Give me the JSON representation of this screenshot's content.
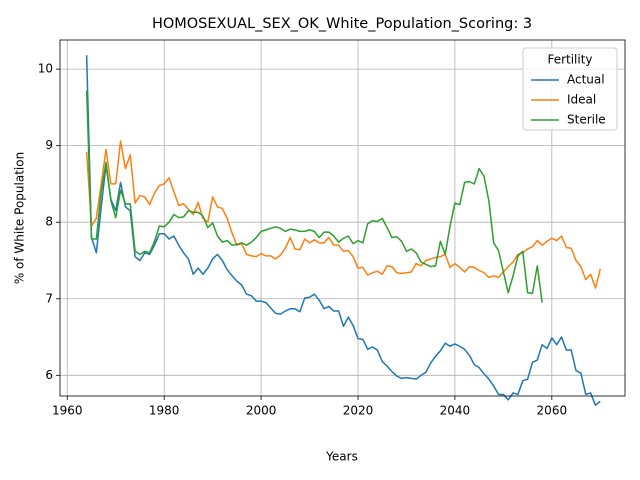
{
  "chart_data": {
    "type": "line",
    "title": "HOMOSEXUAL_SEX_OK_White_Population_Scoring: 3",
    "x_label": "Years",
    "y_label": "% of White Population",
    "legend_title": "Fertility",
    "legend_loc": "upper right",
    "grid": true,
    "x": [
      1964,
      1965,
      1966,
      1967,
      1968,
      1969,
      1970,
      1971,
      1972,
      1973,
      1974,
      1975,
      1976,
      1977,
      1978,
      1979,
      1980,
      1981,
      1982,
      1983,
      1984,
      1985,
      1986,
      1987,
      1988,
      1989,
      1990,
      1991,
      1992,
      1993,
      1994,
      1995,
      1996,
      1997,
      1998,
      1999,
      2000,
      2001,
      2002,
      2003,
      2004,
      2005,
      2006,
      2007,
      2008,
      2009,
      2010,
      2011,
      2012,
      2013,
      2014,
      2015,
      2016,
      2017,
      2018,
      2019,
      2020,
      2021,
      2022,
      2023,
      2024,
      2025,
      2026,
      2027,
      2028,
      2029,
      2030,
      2031,
      2032,
      2033,
      2034,
      2035,
      2036,
      2037,
      2038,
      2039,
      2040,
      2041,
      2042,
      2043,
      2044,
      2045,
      2046,
      2047,
      2048,
      2049,
      2050,
      2051,
      2052,
      2053,
      2054,
      2055,
      2056,
      2057,
      2058,
      2059,
      2060,
      2061,
      2062,
      2063,
      2064,
      2065,
      2066,
      2067,
      2068,
      2069,
      2070
    ],
    "series": [
      {
        "name": "Actual",
        "color": "#1f77b4",
        "values": [
          10.18,
          7.8,
          7.6,
          8.2,
          8.75,
          8.3,
          8.15,
          8.52,
          8.2,
          8.15,
          7.55,
          7.5,
          7.6,
          7.58,
          7.7,
          7.85,
          7.85,
          7.78,
          7.82,
          7.7,
          7.6,
          7.52,
          7.32,
          7.4,
          7.32,
          7.4,
          7.52,
          7.58,
          7.5,
          7.38,
          7.3,
          7.23,
          7.18,
          7.06,
          7.04,
          6.97,
          6.97,
          6.95,
          6.88,
          6.81,
          6.8,
          6.84,
          6.87,
          6.87,
          6.83,
          7.01,
          7.02,
          7.06,
          6.98,
          6.87,
          6.9,
          6.84,
          6.84,
          6.64,
          6.76,
          6.65,
          6.48,
          6.47,
          6.34,
          6.37,
          6.33,
          6.18,
          6.12,
          6.05,
          5.99,
          5.96,
          5.97,
          5.96,
          5.95,
          6.0,
          6.04,
          6.16,
          6.25,
          6.32,
          6.42,
          6.38,
          6.41,
          6.38,
          6.34,
          6.26,
          6.14,
          6.1,
          6.02,
          5.95,
          5.86,
          5.75,
          5.75,
          5.68,
          5.77,
          5.75,
          5.93,
          5.95,
          6.17,
          6.2,
          6.4,
          6.35,
          6.49,
          6.4,
          6.5,
          6.33,
          6.33,
          6.06,
          6.03,
          5.75,
          5.77,
          5.61,
          5.66
        ]
      },
      {
        "name": "Ideal",
        "color": "#ff7f0e",
        "values": [
          8.92,
          7.95,
          8.05,
          8.5,
          8.95,
          8.5,
          8.5,
          9.06,
          8.7,
          8.88,
          8.25,
          8.35,
          8.33,
          8.23,
          8.38,
          8.48,
          8.5,
          8.58,
          8.4,
          8.22,
          8.24,
          8.17,
          8.1,
          8.26,
          8.05,
          8.0,
          8.33,
          8.2,
          8.18,
          8.05,
          7.86,
          7.7,
          7.72,
          7.58,
          7.56,
          7.55,
          7.59,
          7.56,
          7.56,
          7.52,
          7.57,
          7.66,
          7.8,
          7.65,
          7.64,
          7.78,
          7.73,
          7.77,
          7.73,
          7.73,
          7.8,
          7.7,
          7.7,
          7.62,
          7.63,
          7.55,
          7.4,
          7.41,
          7.31,
          7.34,
          7.36,
          7.32,
          7.43,
          7.42,
          7.34,
          7.33,
          7.34,
          7.35,
          7.46,
          7.43,
          7.5,
          7.52,
          7.54,
          7.55,
          7.58,
          7.41,
          7.46,
          7.41,
          7.35,
          7.42,
          7.41,
          7.37,
          7.34,
          7.28,
          7.3,
          7.28,
          7.35,
          7.42,
          7.48,
          7.58,
          7.6,
          7.65,
          7.68,
          7.76,
          7.7,
          7.75,
          7.79,
          7.76,
          7.82,
          7.67,
          7.66,
          7.5,
          7.42,
          7.25,
          7.32,
          7.14,
          7.39
        ]
      },
      {
        "name": "Sterile",
        "color": "#2ca02c",
        "values": [
          9.72,
          7.78,
          7.78,
          8.4,
          8.78,
          8.28,
          8.06,
          8.42,
          8.24,
          8.24,
          7.62,
          7.58,
          7.62,
          7.6,
          7.75,
          7.95,
          7.94,
          8.0,
          8.1,
          8.06,
          8.07,
          8.15,
          8.13,
          8.13,
          8.08,
          7.93,
          7.99,
          7.82,
          7.74,
          7.76,
          7.7,
          7.71,
          7.73,
          7.7,
          7.74,
          7.8,
          7.88,
          7.9,
          7.92,
          7.94,
          7.92,
          7.88,
          7.91,
          7.9,
          7.88,
          7.88,
          7.9,
          7.88,
          7.8,
          7.87,
          7.87,
          7.82,
          7.74,
          7.79,
          7.82,
          7.72,
          7.76,
          7.73,
          7.98,
          8.02,
          8.01,
          8.05,
          7.93,
          7.8,
          7.81,
          7.75,
          7.62,
          7.65,
          7.6,
          7.48,
          7.45,
          7.42,
          7.43,
          7.75,
          7.58,
          7.95,
          8.25,
          8.23,
          8.52,
          8.53,
          8.5,
          8.7,
          8.6,
          8.28,
          7.73,
          7.63,
          7.35,
          7.08,
          7.3,
          7.56,
          7.62,
          7.08,
          7.07,
          7.43,
          6.95,
          null,
          null,
          null,
          null,
          null,
          null,
          null,
          null,
          null,
          null,
          null,
          null
        ]
      }
    ],
    "xlim": [
      1958.5,
      2075.1
    ],
    "xticks": [
      1960,
      1980,
      2000,
      2020,
      2040,
      2060
    ],
    "ylim": [
      5.73,
      10.38
    ],
    "yticks": [
      6,
      7,
      8,
      9,
      10
    ]
  }
}
